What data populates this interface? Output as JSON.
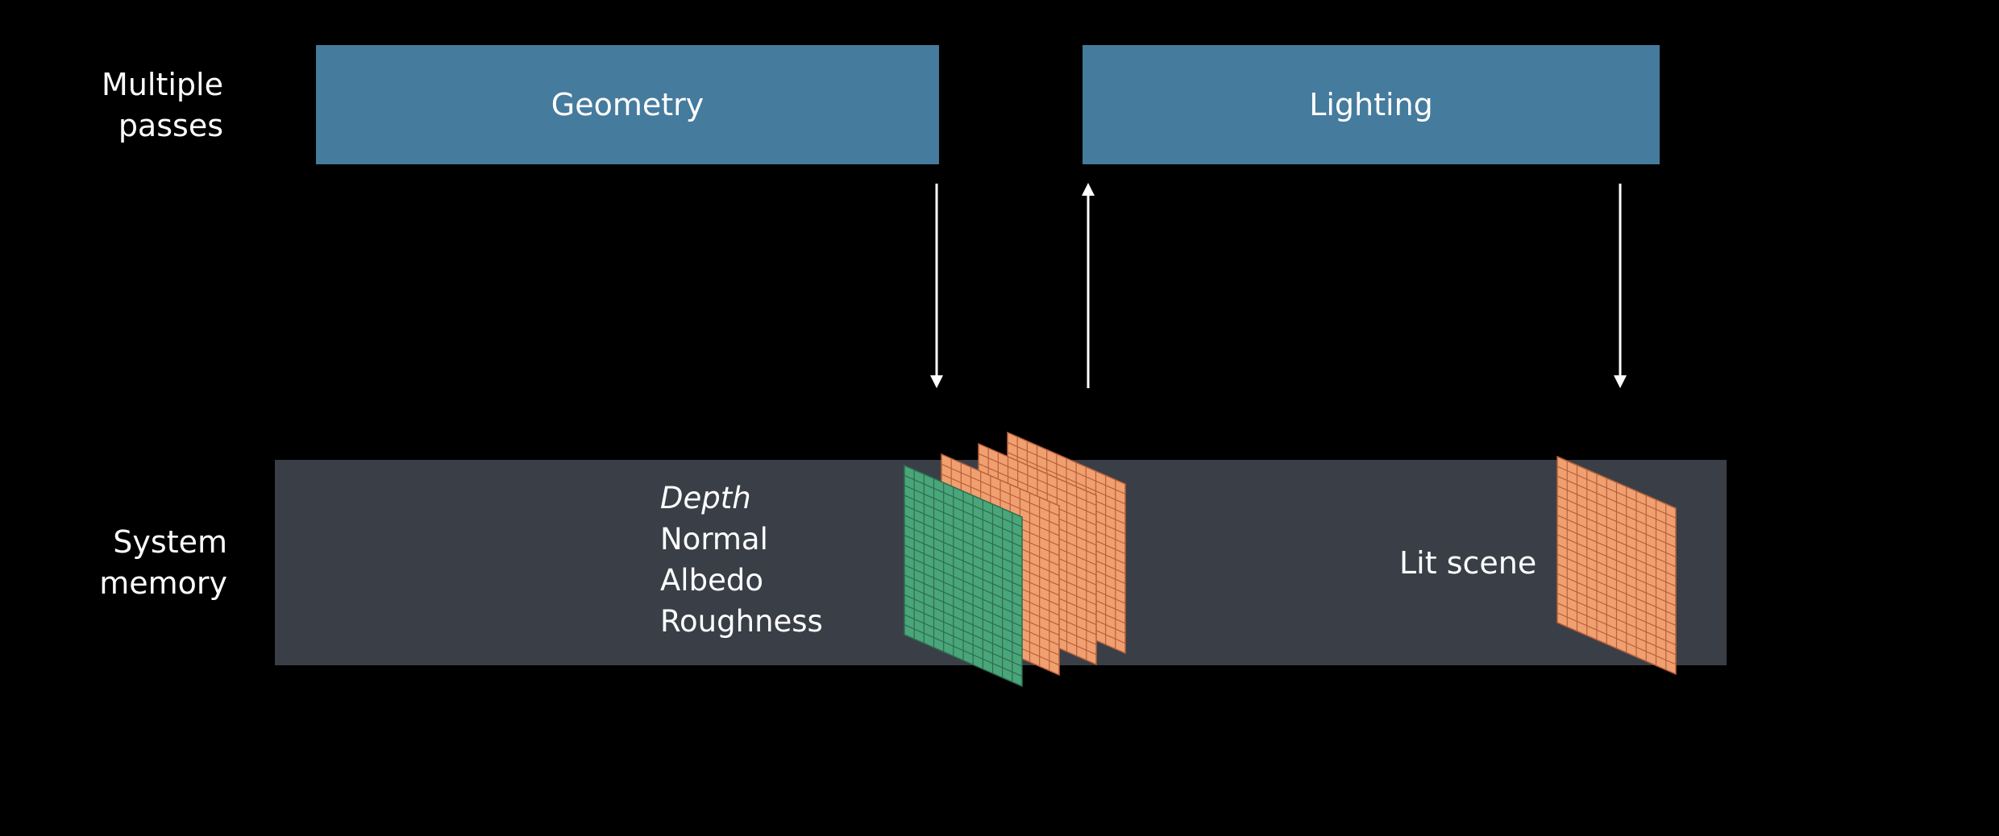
{
  "rows": {
    "passes": {
      "line1": "Multiple",
      "line2": "passes"
    },
    "memory": {
      "line1": "System",
      "line2": "memory"
    }
  },
  "passes": {
    "geometry": "Geometry",
    "lighting": "Lighting"
  },
  "gbuffer": {
    "attributes": [
      "Depth",
      "Normal",
      "Albedo",
      "Roughness"
    ]
  },
  "output": {
    "label": "Lit scene"
  },
  "colors": {
    "background": "#000000",
    "pass_box": "#457b9d",
    "memory_band": "#3a3f47",
    "texture_orange": "#f0a070",
    "texture_orange_line": "#b9603a",
    "texture_green": "#4aa57a",
    "texture_green_line": "#2c6e4e",
    "arrow": "#ffffff"
  }
}
